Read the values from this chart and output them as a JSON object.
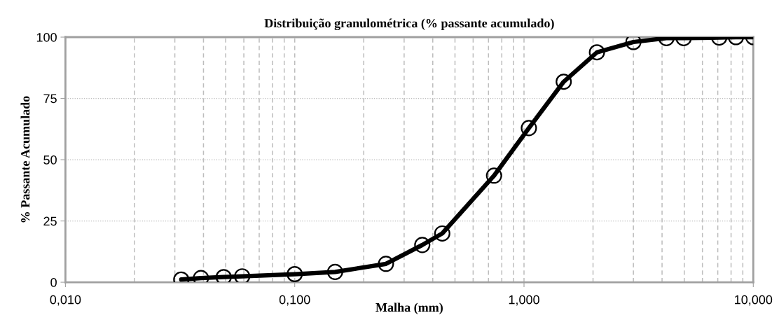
{
  "chart_data": {
    "type": "line",
    "title": "Distribuição granulométrica (% passante acumulado)",
    "xlabel": "Malha (mm)",
    "ylabel": "% Passante Acumulado",
    "log": "x",
    "grid": true,
    "marker": "circle",
    "line_style": "solid",
    "xlim": [
      0.01,
      10
    ],
    "xticks": [
      {
        "value": 0.01,
        "label": "0,010"
      },
      {
        "value": 0.1,
        "label": "0,100"
      },
      {
        "value": 1,
        "label": "1,000"
      },
      {
        "value": 10,
        "label": "10,000"
      }
    ],
    "ylim": [
      0,
      100
    ],
    "yticks": [
      0,
      25,
      50,
      75,
      100
    ],
    "x": [
      0.032,
      0.039,
      0.049,
      0.059,
      0.1,
      0.15,
      0.25,
      0.36,
      0.44,
      0.74,
      1.05,
      1.49,
      2.08,
      3.0,
      4.18,
      4.97,
      7.1,
      8.4,
      10
    ],
    "series": [
      {
        "color": "#000000",
        "values": [
          1.1,
          1.7,
          2.1,
          2.4,
          3.3,
          4.2,
          7.5,
          15.2,
          19.9,
          43.5,
          62.9,
          81.8,
          93.8,
          98.0,
          99.6,
          99.6,
          99.8,
          100,
          100
        ]
      }
    ]
  }
}
